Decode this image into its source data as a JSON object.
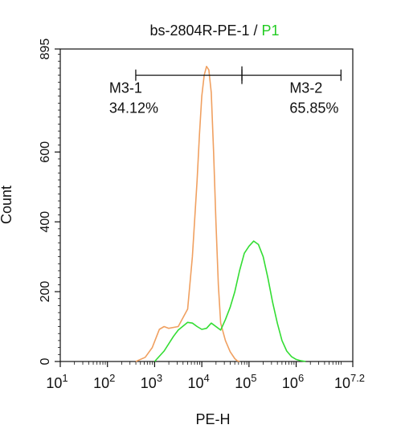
{
  "chart_data": {
    "type": "line",
    "title": {
      "main": "bs-2804R-PE-1 / ",
      "highlight": "P1",
      "highlight_color": "#22cc22"
    },
    "xlabel": "PE-H",
    "ylabel": "Count",
    "xscale": "log",
    "xlim_log10": [
      1,
      7.2
    ],
    "ylim": [
      0,
      895
    ],
    "x_ticks": [
      {
        "value": 1,
        "base": "10",
        "exp": "1"
      },
      {
        "value": 2,
        "base": "10",
        "exp": "2"
      },
      {
        "value": 3,
        "base": "10",
        "exp": "3"
      },
      {
        "value": 4,
        "base": "10",
        "exp": "4"
      },
      {
        "value": 5,
        "base": "10",
        "exp": "5"
      },
      {
        "value": 6,
        "base": "10",
        "exp": "6"
      },
      {
        "value": 7.2,
        "base": "10",
        "exp": "7.2"
      }
    ],
    "y_ticks": [
      {
        "value": 0,
        "label": "0"
      },
      {
        "value": 200,
        "label": "200"
      },
      {
        "value": 400,
        "label": "400"
      },
      {
        "value": 600,
        "label": "600"
      },
      {
        "value": 895,
        "label": "895"
      }
    ],
    "series": [
      {
        "color": "#f0a060",
        "x_log10": [
          2.6,
          2.8,
          2.95,
          3.05,
          3.1,
          3.2,
          3.3,
          3.5,
          3.7,
          3.8,
          3.9,
          3.95,
          4.0,
          4.05,
          4.1,
          4.15,
          4.2,
          4.25,
          4.3,
          4.35,
          4.4,
          4.5,
          4.6,
          4.7,
          4.75,
          4.8
        ],
        "y": [
          0,
          12,
          40,
          75,
          92,
          100,
          95,
          100,
          150,
          300,
          520,
          650,
          760,
          820,
          845,
          835,
          770,
          600,
          400,
          220,
          110,
          60,
          28,
          8,
          2,
          0
        ]
      },
      {
        "color": "#33dd33",
        "x_log10": [
          3.0,
          3.2,
          3.4,
          3.5,
          3.7,
          3.8,
          3.9,
          4.0,
          4.1,
          4.2,
          4.4,
          4.5,
          4.6,
          4.7,
          4.8,
          4.9,
          5.0,
          5.1,
          5.2,
          5.3,
          5.4,
          5.5,
          5.6,
          5.7,
          5.8,
          5.9,
          6.0,
          6.1,
          6.2
        ],
        "y": [
          0,
          30,
          72,
          90,
          112,
          110,
          100,
          92,
          95,
          110,
          90,
          120,
          155,
          200,
          260,
          310,
          330,
          345,
          335,
          300,
          240,
          170,
          110,
          60,
          30,
          14,
          6,
          2,
          0
        ]
      }
    ],
    "markers": [
      {
        "id": "m3-1",
        "name": "M3-1",
        "percent": "34.12%",
        "x_start_log10": 2.6,
        "x_end_log10": 4.85
      },
      {
        "id": "m3-2",
        "name": "M3-2",
        "percent": "65.85%",
        "x_start_log10": 4.85,
        "x_end_log10": 6.95
      }
    ],
    "marker_bar_y": 820,
    "grid": false,
    "legend": "none"
  }
}
